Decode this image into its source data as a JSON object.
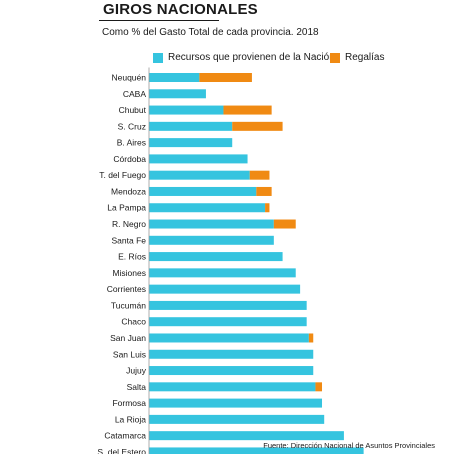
{
  "header": {
    "title": "GIROS NACIONALES",
    "subtitle": "Como %  del Gasto Total de cada provincia. 2018"
  },
  "source": "Fuente: Dirección Nacional de Asuntos Provinciales",
  "colors": {
    "nacion": "#35c4df",
    "regalias": "#f08a13",
    "text": "#1a1a1a"
  },
  "chart_data": {
    "type": "bar",
    "orientation": "horizontal",
    "stacked": true,
    "title": "GIROS NACIONALES",
    "subtitle": "Como %  del Gasto Total de cada provincia. 2018",
    "xlabel": "",
    "ylabel": "",
    "xlim": [
      0,
      100
    ],
    "xticks": [
      0,
      20,
      40,
      60,
      80,
      100
    ],
    "grid": false,
    "legend_position": "top",
    "categories": [
      "Neuquén",
      "CABA",
      "Chubut",
      "S. Cruz",
      "B. Aires",
      "Córdoba",
      "T. del Fuego",
      "Mendoza",
      "La Pampa",
      "R. Negro",
      "Santa Fe",
      "E. Ríos",
      "Misiones",
      "Corrientes",
      "Tucumán",
      "Chaco",
      "San Juan",
      "San Luis",
      "Jujuy",
      "Salta",
      "Formosa",
      "La Rioja",
      "Catamarca",
      "S. del Estero"
    ],
    "series": [
      {
        "name": "Recursos que provienen de la Nación",
        "color": "#35c4df",
        "values": [
          23,
          26,
          34,
          38,
          38,
          45,
          46,
          49,
          53,
          57,
          57,
          61,
          67,
          69,
          72,
          72,
          73,
          75,
          75,
          76,
          79,
          80,
          89,
          98
        ]
      },
      {
        "name": "Regalías",
        "color": "#f08a13",
        "values": [
          24,
          0,
          22,
          23,
          0,
          0,
          9,
          7,
          2,
          10,
          0,
          0,
          0,
          0,
          0,
          0,
          2,
          0,
          0,
          3,
          0,
          0,
          0,
          0
        ]
      }
    ]
  }
}
